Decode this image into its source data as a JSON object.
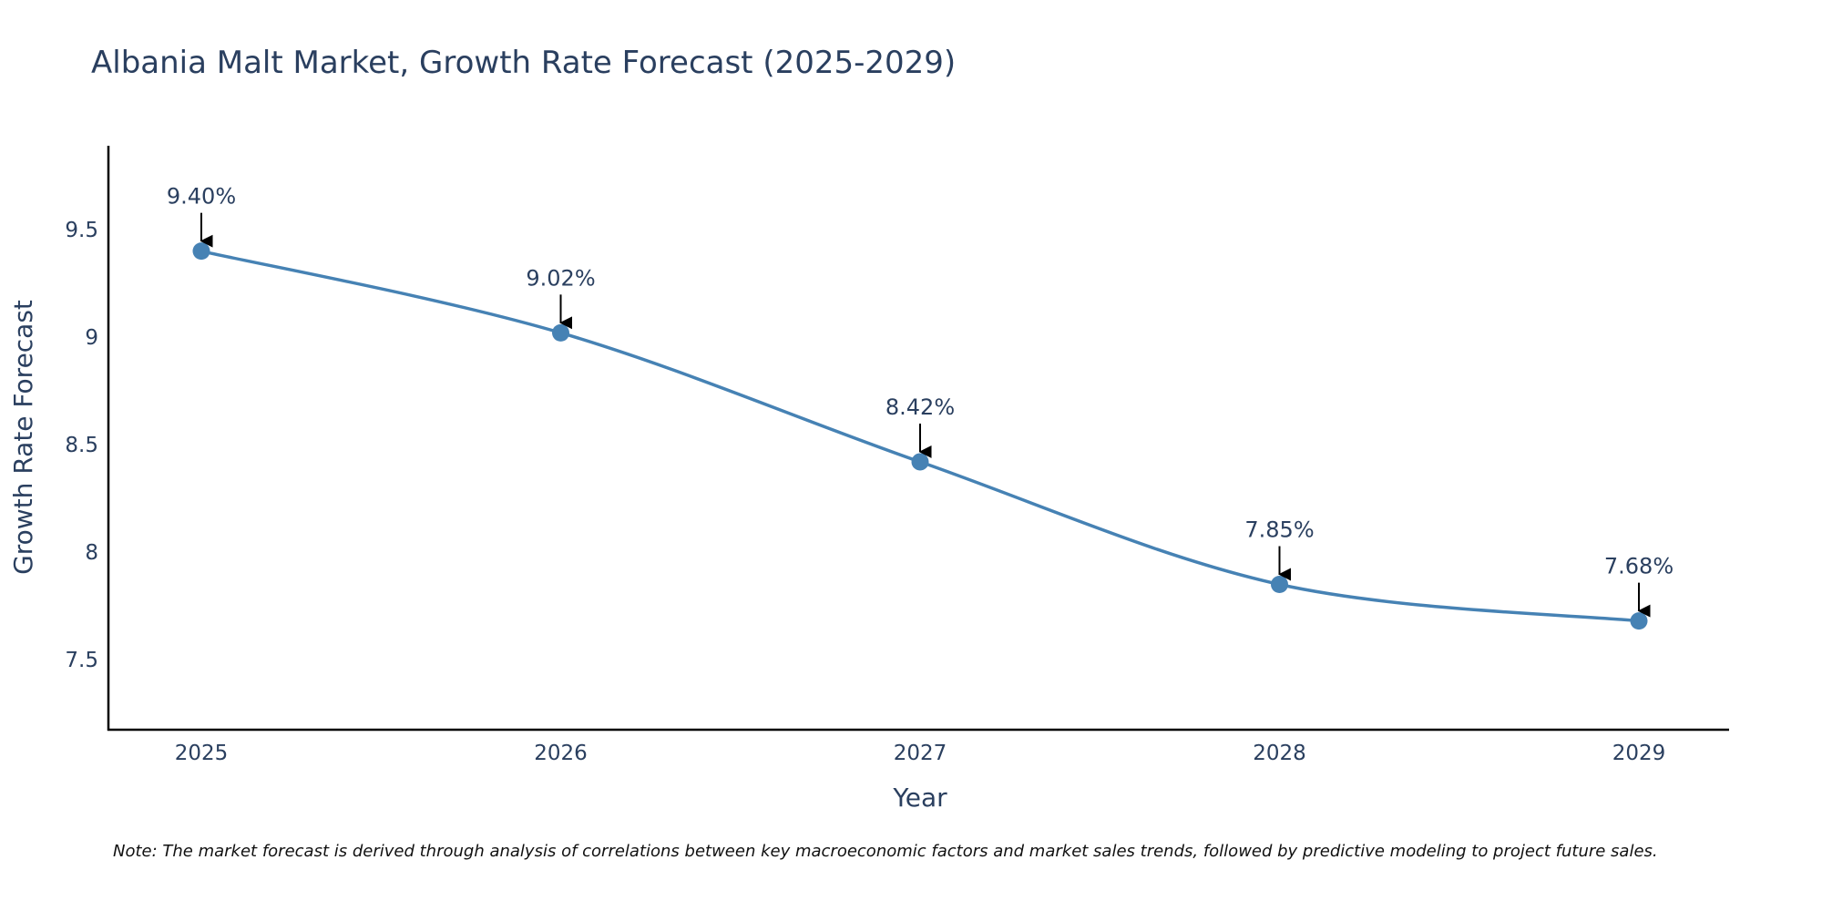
{
  "chart_data": {
    "type": "line",
    "title": "Albania Malt Market, Growth Rate Forecast (2025-2029)",
    "xlabel": "Year",
    "ylabel": "Growth Rate Forecast",
    "categories": [
      "2025",
      "2026",
      "2027",
      "2028",
      "2029"
    ],
    "series": [
      {
        "name": "Growth Rate Forecast",
        "values": [
          9.4,
          9.02,
          8.42,
          7.85,
          7.68
        ],
        "labels": [
          "9.40%",
          "9.02%",
          "8.42%",
          "7.85%",
          "7.68%"
        ]
      }
    ],
    "ylim": [
      7.17,
      9.89
    ],
    "yticks": [
      7.5,
      8,
      8.5,
      9,
      9.5
    ],
    "ytick_labels": [
      "7.5",
      "8",
      "8.5",
      "9",
      "9.5"
    ],
    "grid": false,
    "line_color": "#4682b4",
    "marker_color": "#4682b4",
    "arrow_color": "#000000",
    "note": "Note: The market forecast is derived through analysis of correlations between key macroeconomic factors and market sales trends, followed by predictive modeling to project future sales."
  }
}
